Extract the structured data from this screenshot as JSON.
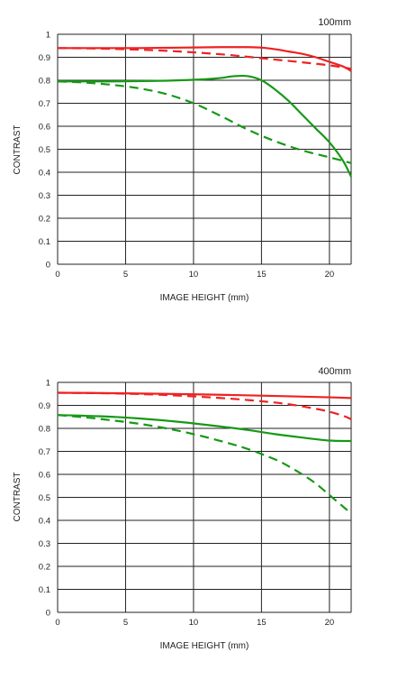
{
  "colors": {
    "sagittal_red": "#ee2222",
    "meridional_green": "#179917",
    "grid": "#222222",
    "background": "#ffffff"
  },
  "chart_data": [
    {
      "type": "line",
      "title": "100mm",
      "xlabel": "IMAGE HEIGHT (mm)",
      "ylabel": "CONTRAST",
      "xlim": [
        0,
        21.6
      ],
      "ylim": [
        0,
        1
      ],
      "xticks": [
        0,
        5,
        10,
        15,
        20
      ],
      "yticks": [
        0,
        0.1,
        0.2,
        0.3,
        0.4,
        0.5,
        0.6,
        0.7,
        0.8,
        0.9,
        1
      ],
      "grid": true,
      "series": [
        {
          "color": "#ee2222",
          "style": "solid",
          "x": [
            0,
            3,
            6,
            9,
            12,
            14,
            15,
            16,
            17,
            18,
            19,
            20,
            21,
            21.6
          ],
          "y": [
            0.94,
            0.94,
            0.94,
            0.942,
            0.944,
            0.944,
            0.942,
            0.935,
            0.925,
            0.915,
            0.9,
            0.88,
            0.86,
            0.84
          ]
        },
        {
          "color": "#ee2222",
          "style": "dashed",
          "x": [
            0,
            3,
            6,
            9,
            12,
            14,
            16,
            18,
            20,
            21.6
          ],
          "y": [
            0.94,
            0.938,
            0.933,
            0.925,
            0.913,
            0.902,
            0.89,
            0.878,
            0.865,
            0.85
          ]
        },
        {
          "color": "#179917",
          "style": "solid",
          "x": [
            0,
            4,
            7,
            9,
            11,
            12,
            13,
            14,
            15,
            16,
            17,
            18,
            19,
            20,
            21,
            21.6
          ],
          "y": [
            0.795,
            0.795,
            0.797,
            0.8,
            0.805,
            0.81,
            0.818,
            0.818,
            0.8,
            0.76,
            0.71,
            0.65,
            0.59,
            0.53,
            0.45,
            0.38
          ]
        },
        {
          "color": "#179917",
          "style": "dashed",
          "x": [
            0,
            2,
            4,
            6,
            8,
            10,
            12,
            14,
            16,
            18,
            20,
            21.6
          ],
          "y": [
            0.795,
            0.79,
            0.78,
            0.765,
            0.74,
            0.7,
            0.645,
            0.585,
            0.535,
            0.495,
            0.465,
            0.44
          ]
        }
      ]
    },
    {
      "type": "line",
      "title": "400mm",
      "xlabel": "IMAGE HEIGHT (mm)",
      "ylabel": "CONTRAST",
      "xlim": [
        0,
        21.6
      ],
      "ylim": [
        0,
        1
      ],
      "xticks": [
        0,
        5,
        10,
        15,
        20
      ],
      "yticks": [
        0,
        0.1,
        0.2,
        0.3,
        0.4,
        0.5,
        0.6,
        0.7,
        0.8,
        0.9,
        1
      ],
      "grid": true,
      "series": [
        {
          "color": "#ee2222",
          "style": "solid",
          "x": [
            0,
            4,
            8,
            12,
            16,
            20,
            21.6
          ],
          "y": [
            0.955,
            0.953,
            0.95,
            0.946,
            0.941,
            0.935,
            0.932
          ]
        },
        {
          "color": "#ee2222",
          "style": "dashed",
          "x": [
            0,
            4,
            8,
            12,
            15,
            17,
            19,
            20,
            21,
            21.6
          ],
          "y": [
            0.955,
            0.952,
            0.945,
            0.932,
            0.918,
            0.905,
            0.885,
            0.872,
            0.855,
            0.84
          ]
        },
        {
          "color": "#179917",
          "style": "solid",
          "x": [
            0,
            3,
            6,
            9,
            12,
            14,
            16,
            18,
            20,
            21.6
          ],
          "y": [
            0.858,
            0.853,
            0.843,
            0.828,
            0.808,
            0.793,
            0.775,
            0.76,
            0.747,
            0.745
          ]
        },
        {
          "color": "#179917",
          "style": "dashed",
          "x": [
            0,
            2,
            4,
            6,
            8,
            10,
            12,
            14,
            16,
            17,
            18,
            19,
            20,
            21,
            21.6
          ],
          "y": [
            0.858,
            0.848,
            0.835,
            0.82,
            0.8,
            0.775,
            0.745,
            0.71,
            0.665,
            0.635,
            0.6,
            0.56,
            0.51,
            0.46,
            0.43
          ]
        }
      ]
    }
  ]
}
